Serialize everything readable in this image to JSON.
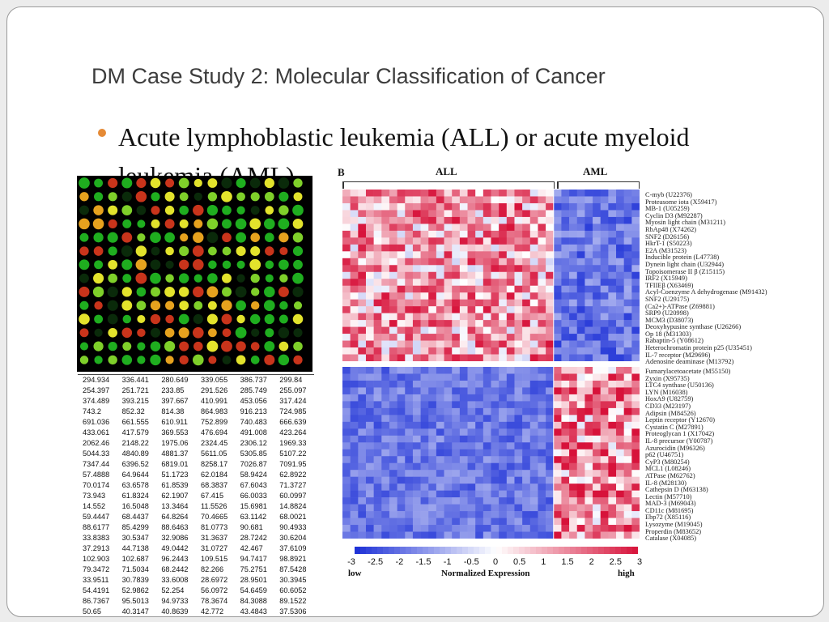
{
  "slide": {
    "title": "DM Case Study 2: Molecular Classification of Cancer",
    "bullet": "Acute lymphoblastic leukemia (ALL) or acute myeloid leukemia (AML)",
    "bullet_color": "#e58a36"
  },
  "table_rows": [
    [
      "294.934",
      "336.441",
      "280.649",
      "339.055",
      "386.737",
      "299.84"
    ],
    [
      "254.397",
      "251.721",
      "233.85",
      "291.526",
      "285.749",
      "255.097"
    ],
    [
      "374.489",
      "393.215",
      "397.667",
      "410.991",
      "453.056",
      "317.424"
    ],
    [
      "743.2",
      "852.32",
      "814.38",
      "864.983",
      "916.213",
      "724.985"
    ],
    [
      "691.036",
      "661.555",
      "610.911",
      "752.899",
      "740.483",
      "666.639"
    ],
    [
      "433.061",
      "417.579",
      "369.553",
      "476.694",
      "491.008",
      "423.264"
    ],
    [
      "2062.46",
      "2148.22",
      "1975.06",
      "2324.45",
      "2306.12",
      "1969.33"
    ],
    [
      "5044.33",
      "4840.89",
      "4881.37",
      "5611.05",
      "5305.85",
      "5107.22"
    ],
    [
      "7347.44",
      "6396.52",
      "6819.01",
      "8258.17",
      "7026.87",
      "7091.95"
    ],
    [
      "57.4888",
      "64.9644",
      "51.1723",
      "62.0184",
      "58.9424",
      "62.8922"
    ],
    [
      "70.0174",
      "63.6578",
      "61.8539",
      "68.3837",
      "67.6043",
      "71.3727"
    ],
    [
      "73.943",
      "61.8324",
      "62.1907",
      "67.415",
      "66.0033",
      "60.0997"
    ],
    [
      "14.552",
      "16.5048",
      "13.3464",
      "11.5526",
      "15.6981",
      "14.8824"
    ],
    [
      "59.4447",
      "68.4437",
      "64.8264",
      "70.4665",
      "63.1142",
      "68.0021"
    ],
    [
      "88.6177",
      "85.4299",
      "88.6463",
      "81.0773",
      "90.681",
      "90.4933"
    ],
    [
      "33.8383",
      "30.5347",
      "32.9086",
      "31.3637",
      "28.7242",
      "30.6204"
    ],
    [
      "37.2913",
      "44.7138",
      "49.0442",
      "31.0727",
      "42.467",
      "37.6109"
    ],
    [
      "102.903",
      "102.687",
      "96.2443",
      "109.515",
      "94.7417",
      "98.8921"
    ],
    [
      "79.3472",
      "71.5034",
      "68.2442",
      "82.266",
      "75.2751",
      "87.5428"
    ],
    [
      "33.9511",
      "30.7839",
      "33.6008",
      "28.6972",
      "28.9501",
      "30.3945"
    ],
    [
      "54.4191",
      "52.9862",
      "52.254",
      "56.0972",
      "54.6459",
      "60.6052"
    ],
    [
      "86.7367",
      "95.5013",
      "94.9733",
      "78.3674",
      "84.3088",
      "89.1522"
    ],
    [
      "50.65",
      "40.3147",
      "40.8639",
      "42.772",
      "43.4843",
      "37.5306"
    ]
  ],
  "heatmap": {
    "panel_label": "B",
    "group_all": "ALL",
    "group_aml": "AML",
    "genes_top": [
      "C-myb (U22376)",
      "Proteasome iota (X59417)",
      "MB-1 (U05259)",
      "Cyclin D3 (M92287)",
      "Myosin light chain (M31211)",
      "RbAp48 (X74262)",
      "SNF2 (D26156)",
      "HkrT-1 (S50223)",
      "E2A (M31523)",
      "Inducible protein (L47738)",
      "Dynein light chain (U32944)",
      "Topoisomerase II β (Z15115)",
      "IRF2 (X15949)",
      "TFIIEβ (X63469)",
      "Acyl-Coenzyme A dehydrogenase (M91432)",
      "SNF2 (U29175)",
      "(Ca2+)-ATPase (Z69881)",
      "SRP9 (U20998)",
      "MCM3 (D38073)",
      "Deoxyhypusine synthase (U26266)",
      "Op 18 (M31303)",
      "Rabaptin-5 (Y08612)",
      "Heterochromatin protein p25 (U35451)",
      "IL-7 receptor (M29696)",
      "Adenosine deaminase (M13792)"
    ],
    "genes_bottom": [
      "Fumarylacetoacetate (M55150)",
      "Zyxin (X95735)",
      "LTC4 synthase (U50136)",
      "LYN (M16038)",
      "HoxA9 (U82759)",
      "CD33 (M23197)",
      "Adipsin (M84526)",
      "Leptin receptor (Y12670)",
      "Cystatin C (M27891)",
      "Proteoglycan 1 (X17042)",
      "IL-8 precursor (Y00787)",
      "Azurocidin (M96326)",
      "p62 (U46751)",
      "CyP3 (M80254)",
      "MCL1 (L08246)",
      "ATPase (M62762)",
      "IL-8 (M28130)",
      "Cathepsin D (M63138)",
      "Lectin (M57710)",
      "MAD-3 (M69043)",
      "CD11c (M81695)",
      "Ebp72 (X85116)",
      "Lysozyme (M19045)",
      "Properdin (M83652)",
      "Catalase (X04085)"
    ],
    "colorbar_ticks": [
      "-3",
      "-2.5",
      "-2",
      "-1.5",
      "-1",
      "-0.5",
      "0",
      "0.5",
      "1",
      "1.5",
      "2",
      "2.5",
      "3"
    ],
    "low_label": "low",
    "high_label": "high",
    "axis_label": "Normalized Expression",
    "low_color": "#1b2fd6",
    "mid_color": "#ffffff",
    "high_color": "#d7123a"
  }
}
